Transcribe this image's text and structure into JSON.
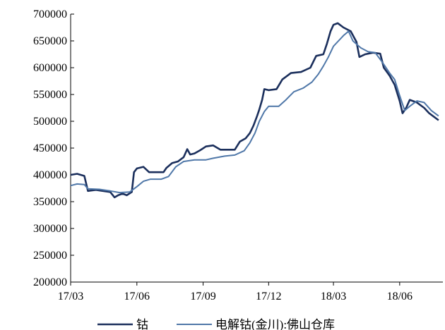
{
  "chart_data": {
    "type": "line",
    "title": "",
    "xlabel": "",
    "ylabel": "",
    "grid": false,
    "legend": "bottom",
    "ylim": [
      200000,
      700000
    ],
    "yticks": [
      200000,
      250000,
      300000,
      350000,
      400000,
      450000,
      500000,
      550000,
      600000,
      650000,
      700000
    ],
    "x_range": [
      "2017-03-01",
      "2018-07-31"
    ],
    "xticks": [
      {
        "date": "2017-03-01",
        "label": "17/03"
      },
      {
        "date": "2017-06-01",
        "label": "17/06"
      },
      {
        "date": "2017-09-01",
        "label": "17/09"
      },
      {
        "date": "2017-12-01",
        "label": "17/12"
      },
      {
        "date": "2018-03-01",
        "label": "18/03"
      },
      {
        "date": "2018-06-01",
        "label": "18/06"
      }
    ],
    "series": [
      {
        "name": "钴",
        "color": "#1b2f5c",
        "points": [
          [
            "2017-03-01",
            400000
          ],
          [
            "2017-03-10",
            402000
          ],
          [
            "2017-03-20",
            398000
          ],
          [
            "2017-03-25",
            370000
          ],
          [
            "2017-04-05",
            372000
          ],
          [
            "2017-04-15",
            370000
          ],
          [
            "2017-04-25",
            368000
          ],
          [
            "2017-05-01",
            358000
          ],
          [
            "2017-05-06",
            362000
          ],
          [
            "2017-05-12",
            365000
          ],
          [
            "2017-05-18",
            362000
          ],
          [
            "2017-05-25",
            368000
          ],
          [
            "2017-05-28",
            405000
          ],
          [
            "2017-06-01",
            412000
          ],
          [
            "2017-06-10",
            415000
          ],
          [
            "2017-06-18",
            405000
          ],
          [
            "2017-07-01",
            405000
          ],
          [
            "2017-07-08",
            405000
          ],
          [
            "2017-07-12",
            413000
          ],
          [
            "2017-07-20",
            422000
          ],
          [
            "2017-07-28",
            425000
          ],
          [
            "2017-08-05",
            433000
          ],
          [
            "2017-08-10",
            448000
          ],
          [
            "2017-08-14",
            438000
          ],
          [
            "2017-08-20",
            440000
          ],
          [
            "2017-08-28",
            446000
          ],
          [
            "2017-09-05",
            453000
          ],
          [
            "2017-09-15",
            455000
          ],
          [
            "2017-09-25",
            447000
          ],
          [
            "2017-10-05",
            447000
          ],
          [
            "2017-10-15",
            447000
          ],
          [
            "2017-10-22",
            462000
          ],
          [
            "2017-10-30",
            468000
          ],
          [
            "2017-11-05",
            478000
          ],
          [
            "2017-11-10",
            492000
          ],
          [
            "2017-11-15",
            510000
          ],
          [
            "2017-11-18",
            522000
          ],
          [
            "2017-11-22",
            540000
          ],
          [
            "2017-11-25",
            560000
          ],
          [
            "2017-12-01",
            558000
          ],
          [
            "2017-12-12",
            560000
          ],
          [
            "2017-12-20",
            578000
          ],
          [
            "2018-01-01",
            590000
          ],
          [
            "2018-01-15",
            592000
          ],
          [
            "2018-01-28",
            600000
          ],
          [
            "2018-02-05",
            622000
          ],
          [
            "2018-02-15",
            625000
          ],
          [
            "2018-02-20",
            645000
          ],
          [
            "2018-02-25",
            668000
          ],
          [
            "2018-03-01",
            680000
          ],
          [
            "2018-03-07",
            683000
          ],
          [
            "2018-03-15",
            675000
          ],
          [
            "2018-03-25",
            668000
          ],
          [
            "2018-04-02",
            648000
          ],
          [
            "2018-04-06",
            620000
          ],
          [
            "2018-04-14",
            625000
          ],
          [
            "2018-04-25",
            628000
          ],
          [
            "2018-05-05",
            626000
          ],
          [
            "2018-05-10",
            600000
          ],
          [
            "2018-05-18",
            585000
          ],
          [
            "2018-05-25",
            568000
          ],
          [
            "2018-06-01",
            538000
          ],
          [
            "2018-06-05",
            515000
          ],
          [
            "2018-06-10",
            525000
          ],
          [
            "2018-06-15",
            540000
          ],
          [
            "2018-06-25",
            535000
          ],
          [
            "2018-07-05",
            525000
          ],
          [
            "2018-07-12",
            515000
          ],
          [
            "2018-07-25",
            502000
          ]
        ]
      },
      {
        "name": "电解钴(金川):佛山仓库",
        "color": "#4f77a8",
        "points": [
          [
            "2017-03-01",
            380000
          ],
          [
            "2017-03-10",
            383000
          ],
          [
            "2017-03-20",
            382000
          ],
          [
            "2017-03-25",
            374000
          ],
          [
            "2017-04-10",
            373000
          ],
          [
            "2017-04-25",
            370000
          ],
          [
            "2017-05-08",
            367000
          ],
          [
            "2017-05-22",
            368000
          ],
          [
            "2017-06-01",
            378000
          ],
          [
            "2017-06-10",
            388000
          ],
          [
            "2017-06-20",
            392000
          ],
          [
            "2017-07-05",
            392000
          ],
          [
            "2017-07-15",
            397000
          ],
          [
            "2017-07-25",
            415000
          ],
          [
            "2017-08-05",
            425000
          ],
          [
            "2017-08-20",
            428000
          ],
          [
            "2017-09-05",
            428000
          ],
          [
            "2017-09-15",
            431000
          ],
          [
            "2017-10-01",
            435000
          ],
          [
            "2017-10-15",
            437000
          ],
          [
            "2017-10-28",
            445000
          ],
          [
            "2017-11-05",
            460000
          ],
          [
            "2017-11-12",
            478000
          ],
          [
            "2017-11-18",
            500000
          ],
          [
            "2017-11-25",
            518000
          ],
          [
            "2017-12-01",
            528000
          ],
          [
            "2017-12-15",
            528000
          ],
          [
            "2017-12-25",
            540000
          ],
          [
            "2018-01-05",
            555000
          ],
          [
            "2018-01-18",
            562000
          ],
          [
            "2018-01-30",
            573000
          ],
          [
            "2018-02-08",
            588000
          ],
          [
            "2018-02-15",
            603000
          ],
          [
            "2018-02-22",
            620000
          ],
          [
            "2018-03-01",
            640000
          ],
          [
            "2018-03-08",
            650000
          ],
          [
            "2018-03-15",
            660000
          ],
          [
            "2018-03-22",
            668000
          ],
          [
            "2018-03-28",
            650000
          ],
          [
            "2018-04-08",
            637000
          ],
          [
            "2018-04-18",
            630000
          ],
          [
            "2018-04-28",
            628000
          ],
          [
            "2018-05-08",
            610000
          ],
          [
            "2018-05-18",
            590000
          ],
          [
            "2018-05-25",
            578000
          ],
          [
            "2018-06-01",
            548000
          ],
          [
            "2018-06-08",
            520000
          ],
          [
            "2018-06-15",
            528000
          ],
          [
            "2018-06-25",
            538000
          ],
          [
            "2018-07-05",
            535000
          ],
          [
            "2018-07-15",
            520000
          ],
          [
            "2018-07-25",
            510000
          ]
        ]
      }
    ]
  }
}
